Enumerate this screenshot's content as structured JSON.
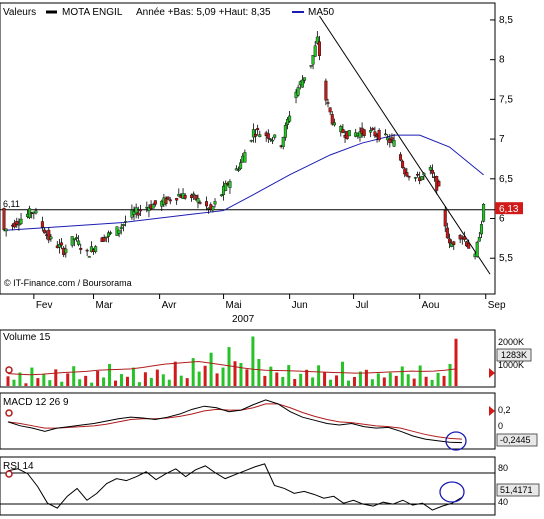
{
  "header": {
    "label": "Valeurs",
    "stock_name": "MOTA ENGIL",
    "range_text": "Année +Bas: 5,09 +Haut: 8,35",
    "ma_label": "MA50",
    "stock_color": "#000000",
    "ma_color": "#1c1cb4"
  },
  "main_panel": {
    "credit": "© IT-Finance.com / Boursorama",
    "ref_level_label": "6,11",
    "last_price_label": "6,13",
    "y_ticks": [
      "8,5",
      "8",
      "7,5",
      "7",
      "6,5",
      "6",
      "5,5"
    ],
    "x_ticks": [
      "Fev",
      "Mar",
      "Avr",
      "Mai",
      "Jun",
      "Jul",
      "Aou",
      "Sep"
    ],
    "year": "2007"
  },
  "volume_panel": {
    "title": "Volume 15",
    "ticks": [
      "2000K",
      "1000K"
    ],
    "last_label": "1283K"
  },
  "macd_panel": {
    "title": "MACD 12 26 9",
    "ticks": [
      "0,2",
      "0"
    ],
    "last_label": "-0,2445"
  },
  "rsi_panel": {
    "title": "RSI 14",
    "ticks": [
      "80",
      "40"
    ],
    "last_label": "51,4171"
  },
  "chart_data": [
    {
      "type": "candlestick",
      "title": "MOTA ENGIL",
      "x_axis": "date",
      "x_range": [
        "2007-01-18",
        "2007-09-03"
      ],
      "ylim": [
        5.1,
        8.6
      ],
      "reference_level": 6.11,
      "last_value": 6.13,
      "grid": false,
      "price_path": [
        {
          "x": "2007-01-18",
          "y": 5.85
        },
        {
          "x": "2007-01-26",
          "y": 6.0
        },
        {
          "x": "2007-02-01",
          "y": 6.1
        },
        {
          "x": "2007-02-08",
          "y": 5.75
        },
        {
          "x": "2007-02-15",
          "y": 5.6
        },
        {
          "x": "2007-02-20",
          "y": 5.75
        },
        {
          "x": "2007-02-26",
          "y": 5.55
        },
        {
          "x": "2007-03-05",
          "y": 5.75
        },
        {
          "x": "2007-03-12",
          "y": 5.85
        },
        {
          "x": "2007-03-19",
          "y": 6.05
        },
        {
          "x": "2007-03-26",
          "y": 6.15
        },
        {
          "x": "2007-04-02",
          "y": 6.2
        },
        {
          "x": "2007-04-10",
          "y": 6.3
        },
        {
          "x": "2007-04-18",
          "y": 6.25
        },
        {
          "x": "2007-04-25",
          "y": 6.1
        },
        {
          "x": "2007-05-02",
          "y": 6.4
        },
        {
          "x": "2007-05-09",
          "y": 6.7
        },
        {
          "x": "2007-05-15",
          "y": 7.1
        },
        {
          "x": "2007-05-22",
          "y": 7.05
        },
        {
          "x": "2007-05-28",
          "y": 6.95
        },
        {
          "x": "2007-06-04",
          "y": 7.6
        },
        {
          "x": "2007-06-11",
          "y": 7.95
        },
        {
          "x": "2007-06-14",
          "y": 8.25
        },
        {
          "x": "2007-06-18",
          "y": 7.5
        },
        {
          "x": "2007-06-22",
          "y": 7.15
        },
        {
          "x": "2007-06-29",
          "y": 7.05
        },
        {
          "x": "2007-07-06",
          "y": 7.1
        },
        {
          "x": "2007-07-13",
          "y": 7.05
        },
        {
          "x": "2007-07-20",
          "y": 6.95
        },
        {
          "x": "2007-07-25",
          "y": 6.6
        },
        {
          "x": "2007-07-31",
          "y": 6.5
        },
        {
          "x": "2007-08-06",
          "y": 6.6
        },
        {
          "x": "2007-08-10",
          "y": 6.35
        },
        {
          "x": "2007-08-15",
          "y": 5.65
        },
        {
          "x": "2007-08-20",
          "y": 5.8
        },
        {
          "x": "2007-08-23",
          "y": 5.7
        },
        {
          "x": "2007-08-27",
          "y": 5.5
        },
        {
          "x": "2007-08-31",
          "y": 6.13
        }
      ],
      "series": [
        {
          "name": "MA50",
          "points": [
            {
              "x": "2007-01-18",
              "y": 5.85
            },
            {
              "x": "2007-02-15",
              "y": 5.9
            },
            {
              "x": "2007-03-15",
              "y": 5.95
            },
            {
              "x": "2007-04-15",
              "y": 6.05
            },
            {
              "x": "2007-05-01",
              "y": 6.1
            },
            {
              "x": "2007-05-15",
              "y": 6.3
            },
            {
              "x": "2007-06-01",
              "y": 6.55
            },
            {
              "x": "2007-06-20",
              "y": 6.8
            },
            {
              "x": "2007-07-05",
              "y": 6.95
            },
            {
              "x": "2007-07-20",
              "y": 7.05
            },
            {
              "x": "2007-08-01",
              "y": 7.05
            },
            {
              "x": "2007-08-15",
              "y": 6.9
            },
            {
              "x": "2007-08-31",
              "y": 6.55
            }
          ]
        }
      ],
      "trendline": [
        {
          "x": "2007-06-15",
          "y": 8.55
        },
        {
          "x": "2007-09-03",
          "y": 5.3
        }
      ]
    },
    {
      "type": "bar",
      "title": "Volume 15",
      "ylim": [
        0,
        2400
      ],
      "unit": "K",
      "last_value": 1283,
      "bar_colors": [
        "#27c227",
        "#d11a1a"
      ],
      "values": [
        430,
        280,
        600,
        120,
        820,
        350,
        510,
        260,
        740,
        190,
        560,
        880,
        300,
        450,
        150,
        670,
        380,
        980,
        240,
        530,
        410,
        820,
        170,
        610,
        360,
        730,
        520,
        280,
        1080,
        460,
        350,
        1240,
        640,
        900,
        1480,
        560,
        820,
        1730,
        1100,
        1020,
        740,
        2200,
        1200,
        450,
        860,
        600,
        400,
        930,
        310,
        540,
        720,
        380,
        920,
        610,
        280,
        470,
        1080,
        240,
        400,
        640,
        720,
        300,
        560,
        380,
        590,
        450,
        870,
        520,
        330,
        910,
        410,
        270,
        580,
        450,
        980,
        2100
      ],
      "volume_average": [
        550,
        520,
        500,
        520,
        560,
        600,
        620,
        650,
        700,
        720,
        740,
        760,
        820,
        900,
        970,
        1010,
        1050,
        1090,
        1020,
        950,
        880,
        800,
        740,
        700,
        690,
        680,
        660,
        640,
        620,
        600,
        590,
        570,
        580,
        600,
        620,
        640,
        660,
        650,
        660,
        700,
        760
      ]
    },
    {
      "type": "line",
      "title": "MACD 12 26 9",
      "ylim": [
        -0.3,
        0.35
      ],
      "last_value": -0.2445,
      "series": [
        {
          "color": "#000000",
          "values": [
            0.02,
            -0.03,
            -0.06,
            -0.1,
            -0.06,
            -0.04,
            -0.02,
            0.0,
            0.03,
            0.06,
            0.08,
            0.07,
            0.05,
            0.08,
            0.12,
            0.18,
            0.22,
            0.2,
            0.15,
            0.17,
            0.24,
            0.3,
            0.25,
            0.15,
            0.08,
            0.04,
            0.0,
            -0.02,
            0.0,
            -0.04,
            -0.06,
            -0.05,
            -0.1,
            -0.16,
            -0.2,
            -0.22,
            -0.24,
            -0.245
          ]
        },
        {
          "color": "#b01c1c",
          "values": [
            0.02,
            0.0,
            -0.03,
            -0.06,
            -0.06,
            -0.05,
            -0.04,
            -0.03,
            -0.01,
            0.02,
            0.05,
            0.06,
            0.06,
            0.07,
            0.09,
            0.12,
            0.16,
            0.18,
            0.17,
            0.17,
            0.2,
            0.25,
            0.25,
            0.2,
            0.14,
            0.09,
            0.05,
            0.02,
            0.01,
            -0.01,
            -0.03,
            -0.04,
            -0.06,
            -0.1,
            -0.14,
            -0.17,
            -0.19,
            -0.2
          ]
        }
      ]
    },
    {
      "type": "line",
      "title": "RSI 14",
      "ylim": [
        35,
        90
      ],
      "last_value": 51.4171,
      "series": [
        {
          "color": "#000000",
          "values": [
            78,
            80,
            75,
            62,
            45,
            40,
            52,
            60,
            48,
            55,
            65,
            70,
            68,
            72,
            77,
            69,
            75,
            80,
            72,
            79,
            83,
            76,
            70,
            74,
            78,
            82,
            85,
            63,
            60,
            55,
            57,
            54,
            50,
            52,
            45,
            48,
            44,
            42,
            46,
            44,
            48,
            43,
            45,
            38,
            42,
            45,
            51
          ]
        }
      ]
    }
  ]
}
